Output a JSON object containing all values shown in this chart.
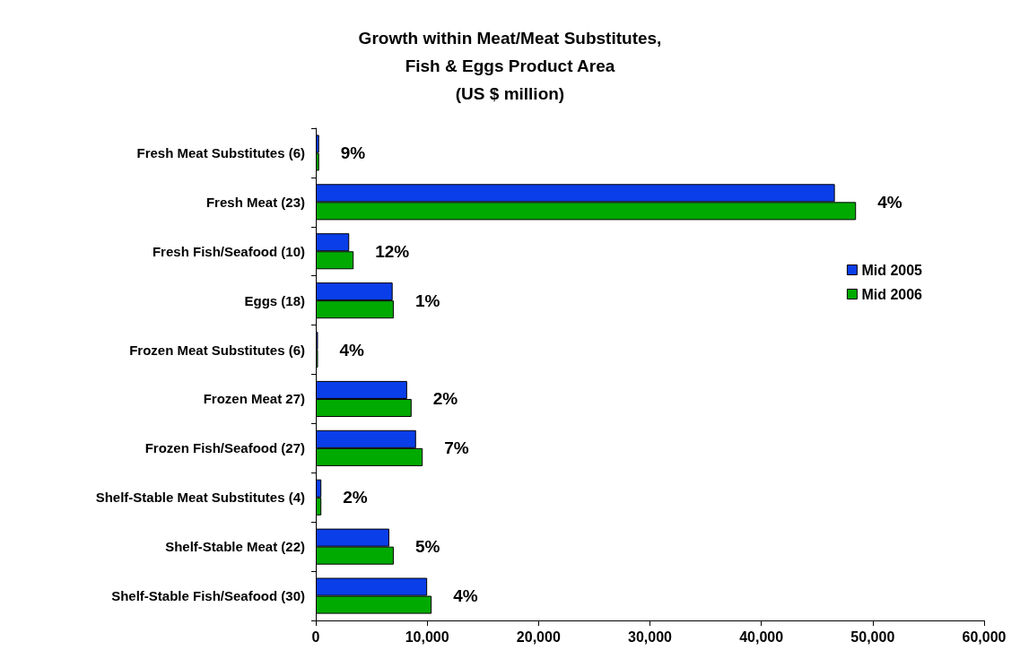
{
  "chart_data": {
    "type": "bar",
    "orientation": "horizontal",
    "title": "Growth within Meat/Meat Substitutes,\nFish & Eggs Product Area\n(US $ million)",
    "categories": [
      "Fresh Meat Substitutes (6)",
      "Fresh Meat (23)",
      "Fresh Fish/Seafood (10)",
      "Eggs (18)",
      "Frozen Meat Substitutes (6)",
      "Frozen Meat 27)",
      "Frozen Fish/Seafood (27)",
      "Shelf-Stable Meat Substitutes (4)",
      "Shelf-Stable Meat (22)",
      "Shelf-Stable Fish/Seafood (30)"
    ],
    "series": [
      {
        "name": "Mid 2005",
        "color": "#0a3ee8",
        "values": [
          300,
          46600,
          3000,
          6900,
          200,
          8200,
          9000,
          500,
          6600,
          10000
        ]
      },
      {
        "name": "Mid 2006",
        "color": "#00aa00",
        "values": [
          300,
          48500,
          3400,
          7000,
          200,
          8600,
          9600,
          500,
          7000,
          10400
        ]
      }
    ],
    "annotations": [
      {
        "text": "9%",
        "x": 300,
        "y": "Fresh Meat Substitutes (6)"
      },
      {
        "text": "4%",
        "x": 48500,
        "y": "Fresh Meat (23)"
      },
      {
        "text": "12%",
        "x": 3400,
        "y": "Fresh Fish/Seafood (10)"
      },
      {
        "text": "1%",
        "x": 7000,
        "y": "Eggs (18)"
      },
      {
        "text": "4%",
        "x": 200,
        "y": "Frozen Meat Substitutes (6)"
      },
      {
        "text": "2%",
        "x": 8600,
        "y": "Frozen Meat 27)"
      },
      {
        "text": "7%",
        "x": 9600,
        "y": "Frozen Fish/Seafood (27)"
      },
      {
        "text": "2%",
        "x": 500,
        "y": "Shelf-Stable Meat Substitutes (4)"
      },
      {
        "text": "5%",
        "x": 7000,
        "y": "Shelf-Stable Meat (22)"
      },
      {
        "text": "4%",
        "x": 10400,
        "y": "Shelf-Stable Fish/Seafood (30)"
      }
    ],
    "xlim": [
      0,
      60000
    ],
    "xticks": [
      0,
      {
        "value": 10000,
        "label": "10,000"
      },
      {
        "value": 20000,
        "label": "20,000"
      },
      {
        "value": 30000,
        "label": "30,000"
      },
      {
        "value": 40000,
        "label": "40,000"
      },
      {
        "value": 50000,
        "label": "50,000"
      },
      {
        "value": 60000,
        "label": "60,000"
      }
    ],
    "legend": "right"
  }
}
